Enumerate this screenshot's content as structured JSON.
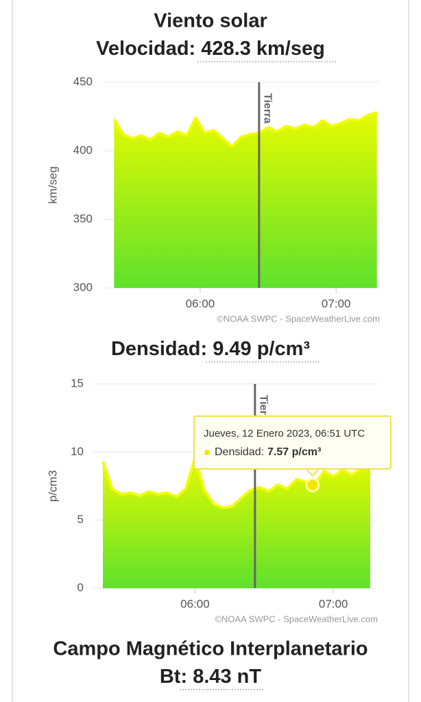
{
  "title": "Viento solar",
  "velocity": {
    "label": "Velocidad:",
    "value": "428.3 km/seg"
  },
  "density": {
    "label": "Densidad:",
    "value": "9.49 p/cm³"
  },
  "imf": {
    "title": "Campo Magnético Interplanetario",
    "label": "Bt:",
    "value": "8.43 nT"
  },
  "chart_data": [
    {
      "type": "area",
      "y_label": "km/seg",
      "credit": "©NOAA SWPC - SpaceWeatherLive.com",
      "x": [
        "05:22",
        "05:26",
        "05:30",
        "05:34",
        "05:38",
        "05:42",
        "05:46",
        "05:50",
        "05:54",
        "05:58",
        "06:02",
        "06:06",
        "06:10",
        "06:14",
        "06:18",
        "06:22",
        "06:26",
        "06:30",
        "06:34",
        "06:38",
        "06:42",
        "06:46",
        "06:50",
        "06:54",
        "06:58",
        "07:02",
        "07:06",
        "07:10",
        "07:14",
        "07:18"
      ],
      "values": [
        423,
        412,
        409,
        411,
        408,
        413,
        410,
        414,
        411,
        424,
        413,
        415,
        409,
        403,
        410,
        412,
        413,
        417,
        414,
        418,
        416,
        419,
        417,
        422,
        418,
        420,
        423,
        422,
        426,
        428
      ],
      "xlim": [
        "05:21",
        "07:19"
      ],
      "xticks": [
        "06:00",
        "07:00"
      ],
      "ylim": [
        300,
        450
      ],
      "yticks": [
        300,
        350,
        400,
        450
      ],
      "grid": true,
      "color": "#f2ff00",
      "gradient": [
        "#e6fb00",
        "#5fe12c"
      ],
      "annotation": {
        "text": "Tierra",
        "x": "06:26"
      }
    },
    {
      "type": "area",
      "y_label": "p/cm3",
      "credit": "©NOAA SWPC - SpaceWeatherLive.com",
      "x": [
        "05:20",
        "05:24",
        "05:28",
        "05:32",
        "05:36",
        "05:40",
        "05:44",
        "05:48",
        "05:52",
        "05:56",
        "06:00",
        "06:04",
        "06:08",
        "06:12",
        "06:16",
        "06:20",
        "06:24",
        "06:28",
        "06:32",
        "06:36",
        "06:40",
        "06:44",
        "06:48",
        "06:52",
        "06:56",
        "07:00",
        "07:04",
        "07:08",
        "07:12",
        "07:16"
      ],
      "values": [
        9.3,
        7.3,
        6.9,
        7.0,
        6.8,
        7.1,
        6.9,
        7.0,
        6.7,
        7.3,
        9.6,
        7.2,
        6.2,
        5.9,
        6.0,
        6.6,
        7.2,
        7.4,
        7.1,
        7.6,
        7.3,
        8.0,
        7.8,
        7.6,
        8.6,
        8.2,
        8.7,
        8.3,
        8.8,
        9.2
      ],
      "xlim": [
        "05:20",
        "07:19"
      ],
      "xticks": [
        "06:00",
        "07:00"
      ],
      "ylim": [
        0,
        15
      ],
      "yticks": [
        0,
        5,
        10,
        15
      ],
      "grid": true,
      "color": "#f2ff00",
      "gradient": [
        "#e6fb00",
        "#5fe12c"
      ],
      "annotation": {
        "text": "Tierra",
        "x": "06:26"
      },
      "tooltip": {
        "date": "Jueves, 12 Enero 2023, 06:51 UTC",
        "label": "Densidad:",
        "value": "7.57 p/cm³",
        "x": "06:51",
        "y": 7.57
      }
    }
  ]
}
